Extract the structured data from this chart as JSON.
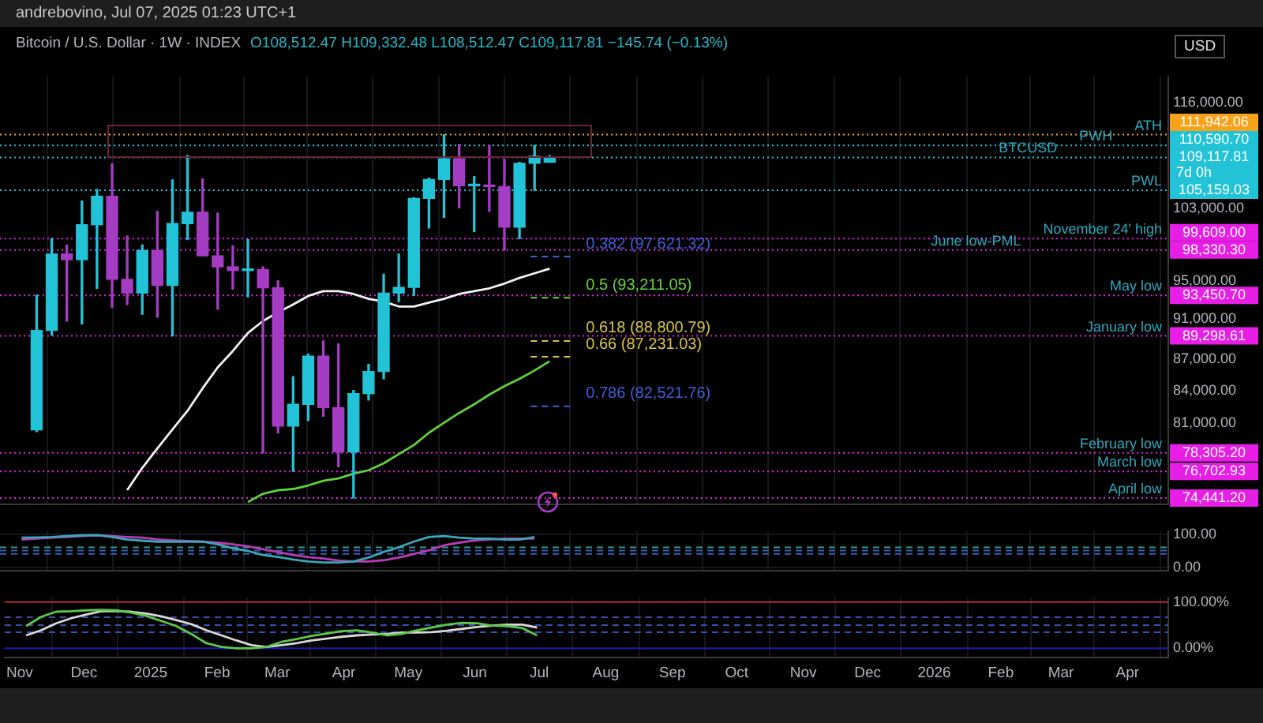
{
  "chart_data": [
    {
      "type": "candlestick",
      "title": "Bitcoin / U.S. Dollar · 1W · INDEX",
      "subtitle": "O108,512.47 H109,332.48 L108,512.47 C109,117.81 −145.74 (−0.13%)",
      "ylabel": "USD",
      "log": true,
      "grid": "x",
      "tick_labels": "y",
      "x": [
        "2024-11-11",
        "2024-11-18",
        "2024-11-25",
        "2024-12-02",
        "2024-12-09",
        "2024-12-16",
        "2024-12-23",
        "2024-12-30",
        "2025-01-06",
        "2025-01-13",
        "2025-01-20",
        "2025-01-27",
        "2025-02-03",
        "2025-02-10",
        "2025-02-17",
        "2025-02-24",
        "2025-03-03",
        "2025-03-10",
        "2025-03-17",
        "2025-03-24",
        "2025-03-31",
        "2025-04-07",
        "2025-04-14",
        "2025-04-21",
        "2025-04-28",
        "2025-05-05",
        "2025-05-12",
        "2025-05-19",
        "2025-05-26",
        "2025-06-02",
        "2025-06-09",
        "2025-06-16",
        "2025-06-23",
        "2025-06-30",
        "2025-07-07"
      ],
      "ohlc": [
        [
          80370,
          93480,
          80200,
          89850
        ],
        [
          89850,
          99609,
          89380,
          97900
        ],
        [
          97900,
          98870,
          90800,
          97280
        ],
        [
          97280,
          103900,
          90500,
          101170
        ],
        [
          101170,
          105250,
          94200,
          104460
        ],
        [
          104460,
          108350,
          92200,
          95150
        ],
        [
          95150,
          99900,
          92500,
          93700
        ],
        [
          93700,
          98900,
          91500,
          98300
        ],
        [
          98300,
          102700,
          91200,
          94500
        ],
        [
          94500,
          106400,
          89298.61,
          101300
        ],
        [
          101300,
          109350,
          99500,
          102600
        ],
        [
          102600,
          106500,
          97700,
          97700
        ],
        [
          97700,
          102500,
          92000,
          96500
        ],
        [
          96500,
          98800,
          94100,
          96100
        ],
        [
          96100,
          99500,
          93300,
          96200
        ],
        [
          96200,
          96500,
          78305.2,
          94250
        ],
        [
          94250,
          95000,
          80100,
          80700
        ],
        [
          80700,
          85300,
          76702.93,
          82700
        ],
        [
          82700,
          87500,
          81200,
          87300
        ],
        [
          87300,
          88800,
          81600,
          82400
        ],
        [
          82400,
          88500,
          77100,
          78400
        ],
        [
          78400,
          84000,
          74441.2,
          83700
        ],
        [
          83700,
          86500,
          83100,
          85800
        ],
        [
          85800,
          95700,
          85100,
          93700
        ],
        [
          93700,
          97900,
          92800,
          94300
        ],
        [
          94300,
          104300,
          93450.7,
          104200
        ],
        [
          104200,
          106600,
          100800,
          106450
        ],
        [
          106450,
          111942.06,
          102000,
          108950
        ],
        [
          108950,
          110700,
          103100,
          105700
        ],
        [
          105700,
          106800,
          100400,
          105750
        ],
        [
          105750,
          110600,
          102700,
          105600
        ],
        [
          105600,
          108900,
          98330.3,
          100900
        ],
        [
          100900,
          108500,
          99600,
          108400
        ],
        [
          108400,
          110590.7,
          105159.03,
          109263.55
        ],
        [
          108512.47,
          109332.48,
          108512.47,
          109117.81
        ]
      ],
      "colors": [
        "#22c3d6",
        "#22c3d6",
        "#a43cc4",
        "#22c3d6",
        "#22c3d6",
        "#a43cc4",
        "#a43cc4",
        "#22c3d6",
        "#a43cc4",
        "#22c3d6",
        "#22c3d6",
        "#a43cc4",
        "#a43cc4",
        "#a43cc4",
        "#22c3d6",
        "#a43cc4",
        "#a43cc4",
        "#22c3d6",
        "#22c3d6",
        "#a43cc4",
        "#a43cc4",
        "#22c3d6",
        "#22c3d6",
        "#22c3d6",
        "#22c3d6",
        "#22c3d6",
        "#22c3d6",
        "#22c3d6",
        "#a43cc4",
        "#22c3d6",
        "#a43cc4",
        "#a43cc4",
        "#22c3d6",
        "#22c3d6",
        "#22c3d6"
      ],
      "series": [
        {
          "type": "line",
          "color": "#f2f2f2",
          "values": [
            null,
            null,
            null,
            null,
            null,
            null,
            75100,
            77000,
            78700,
            80400,
            82100,
            84200,
            86200,
            87800,
            89600,
            90800,
            91700,
            92500,
            93400,
            93900,
            93900,
            93600,
            93100,
            92800,
            92300,
            92300,
            92700,
            93100,
            93600,
            93900,
            94200,
            94700,
            95300,
            95800,
            96300
          ]
        },
        {
          "type": "line",
          "color": "#5fd13a",
          "values": [
            null,
            null,
            null,
            null,
            null,
            null,
            null,
            null,
            null,
            null,
            null,
            null,
            null,
            null,
            74100,
            74800,
            75100,
            75200,
            75500,
            75900,
            76100,
            76500,
            76800,
            77400,
            78200,
            79000,
            80100,
            81000,
            81900,
            82700,
            83600,
            84400,
            85100,
            85900,
            86800
          ]
        }
      ],
      "xlim": [
        "2024-10-25",
        "2026-04-20"
      ],
      "xticks": [
        {
          "value": "2024-11-01",
          "label": null
        },
        {
          "value": "2024-12-01",
          "label": null
        },
        {
          "value": "2025-01-01",
          "label": null
        },
        {
          "value": "2025-02-01",
          "label": null
        },
        {
          "value": "2025-03-01",
          "label": null
        },
        {
          "value": "2025-04-01",
          "label": null
        },
        {
          "value": "2025-05-01",
          "label": null
        },
        {
          "value": "2025-06-01",
          "label": null
        },
        {
          "value": "2025-07-01",
          "label": null
        },
        {
          "value": "2025-08-01",
          "label": null
        },
        {
          "value": "2025-09-01",
          "label": null
        },
        {
          "value": "2025-10-01",
          "label": null
        },
        {
          "value": "2025-11-01",
          "label": null
        },
        {
          "value": "2025-12-01",
          "label": null
        },
        {
          "value": "2026-01-01",
          "label": null
        },
        {
          "value": "2026-02-01",
          "label": null
        },
        {
          "value": "2026-03-01",
          "label": null
        },
        {
          "value": "2026-04-01",
          "label": null
        }
      ],
      "ylim": [
        73900,
        119500
      ],
      "yticks": [
        {
          "value": 81000,
          "label": "81,000.00"
        },
        {
          "value": 84000,
          "label": "84,000.00"
        },
        {
          "value": 87000,
          "label": "87,000.00"
        },
        {
          "value": 91000,
          "label": "91,000.00"
        },
        {
          "value": 95000,
          "label": "95,000.00"
        },
        {
          "value": 103000,
          "label": "103,000.00"
        },
        {
          "value": 116000,
          "label": "116,000.00"
        }
      ],
      "ref_lines": [
        {
          "axis": "y",
          "value": 111942.06,
          "label": "111,942.06",
          "color": "#f7a21b",
          "line_style": "dotted"
        },
        {
          "axis": "y",
          "value": 110590.7,
          "label": "110,590.70",
          "color": "#22c3d6",
          "line_style": "dotted"
        },
        {
          "axis": "y",
          "value": 109117.81,
          "label": "109,117.81",
          "color": "#22c3d6",
          "line_style": "dotted"
        },
        {
          "axis": "y",
          "value": 105159.03,
          "label": "105,159.03",
          "color": "#22c3d6",
          "line_style": "dotted"
        },
        {
          "axis": "y",
          "value": 99609.0,
          "label": "99,609.00",
          "color": "#e61ee6",
          "line_style": "dotted"
        },
        {
          "axis": "y",
          "value": 98330.3,
          "label": "98,330.30",
          "color": "#e61ee6",
          "line_style": "dotted"
        },
        {
          "axis": "y",
          "value": 93450.7,
          "label": "93,450.70",
          "color": "#e61ee6",
          "line_style": "dotted"
        },
        {
          "axis": "y",
          "value": 89298.61,
          "label": "89,298.61",
          "color": "#e61ee6",
          "line_style": "dotted"
        },
        {
          "axis": "y",
          "value": 78305.2,
          "label": "78,305.20",
          "color": "#e61ee6",
          "line_style": "dotted"
        },
        {
          "axis": "y",
          "value": 76702.93,
          "label": "76,702.93",
          "color": "#e61ee6",
          "line_style": "dotted"
        },
        {
          "axis": "y",
          "value": 74441.2,
          "label": "74,441.20",
          "color": "#e61ee6",
          "line_style": "dotted"
        },
        {
          "axis": "y",
          "value": 97621.32,
          "label": "0.382 (97,621.32)",
          "color": "#3f5fd8",
          "line_style": "dashed"
        },
        {
          "axis": "y",
          "value": 93211.05,
          "label": "0.5 (93,211.05)",
          "color": "#66d33a",
          "line_style": "dashed"
        },
        {
          "axis": "y",
          "value": 88800.79,
          "label": "0.618 (88,800.79)",
          "color": "#d8c24a",
          "line_style": "dashed"
        },
        {
          "axis": "y",
          "value": 87231.03,
          "label": "0.66 (87,231.03)",
          "color": "#d8c24a",
          "line_style": "dashed"
        },
        {
          "axis": "y",
          "value": 82521.76,
          "label": "0.786 (82,521.76)",
          "color": "#3f5fd8",
          "line_style": "dashed"
        }
      ],
      "annotations": [
        "andrebovino, Jul 07, 2025 01:23 UTC+1",
        "ATH",
        "PWH",
        "BTCUSD",
        "PWL",
        "November 24' high",
        "June low-PML",
        "May low",
        "January low",
        "February low",
        "March low",
        "April low",
        "7d 0h"
      ]
    },
    {
      "type": "line",
      "grid": true,
      "tick_labels": "y",
      "x": [
        "2024-11-04",
        "2024-11-11",
        "2024-11-18",
        "2024-11-25",
        "2024-12-02",
        "2024-12-09",
        "2024-12-16",
        "2024-12-23",
        "2024-12-30",
        "2025-01-06",
        "2025-01-13",
        "2025-01-20",
        "2025-01-27",
        "2025-02-03",
        "2025-02-10",
        "2025-02-17",
        "2025-02-24",
        "2025-03-03",
        "2025-03-10",
        "2025-03-17",
        "2025-03-24",
        "2025-03-31",
        "2025-04-07",
        "2025-04-14",
        "2025-04-21",
        "2025-04-28",
        "2025-05-05",
        "2025-05-12",
        "2025-05-19",
        "2025-05-26",
        "2025-06-02",
        "2025-06-09",
        "2025-06-16",
        "2025-06-23",
        "2025-06-30"
      ],
      "series": [
        {
          "color": "#3aa6b9",
          "values": [
            89,
            90,
            91,
            94,
            96,
            97,
            91,
            83,
            80,
            77,
            77,
            77,
            77,
            69,
            57,
            49,
            37,
            31,
            23,
            17,
            14,
            14,
            17,
            29,
            46,
            60,
            77,
            91,
            94,
            89,
            86,
            86,
            83,
            83,
            91
          ]
        },
        {
          "color": "#b93ab5",
          "values": [
            83,
            86,
            89,
            91,
            94,
            96,
            94,
            91,
            89,
            84,
            81,
            79,
            77,
            74,
            69,
            63,
            54,
            46,
            37,
            30,
            26,
            20,
            17,
            17,
            21,
            29,
            40,
            51,
            66,
            74,
            80,
            84,
            86,
            86,
            86
          ]
        }
      ],
      "xlim": [
        "2024-10-25",
        "2026-04-20"
      ],
      "xticks": [
        {
          "value": "2024-11-01",
          "label": null
        },
        {
          "value": "2024-12-01",
          "label": null
        },
        {
          "value": "2025-01-01",
          "label": null
        },
        {
          "value": "2025-02-01",
          "label": null
        },
        {
          "value": "2025-03-01",
          "label": null
        },
        {
          "value": "2025-04-01",
          "label": null
        },
        {
          "value": "2025-05-01",
          "label": null
        },
        {
          "value": "2025-06-01",
          "label": null
        },
        {
          "value": "2025-07-01",
          "label": null
        },
        {
          "value": "2025-08-01",
          "label": null
        },
        {
          "value": "2025-09-01",
          "label": null
        },
        {
          "value": "2025-10-01",
          "label": null
        },
        {
          "value": "2025-11-01",
          "label": null
        },
        {
          "value": "2025-12-01",
          "label": null
        },
        {
          "value": "2026-01-01",
          "label": null
        },
        {
          "value": "2026-02-01",
          "label": null
        },
        {
          "value": "2026-03-01",
          "label": null
        },
        {
          "value": "2026-04-01",
          "label": null
        }
      ],
      "ylim": [
        -11,
        109
      ],
      "yticks": [
        {
          "value": 0,
          "label": "0.00"
        },
        {
          "value": 100,
          "label": "100.00"
        }
      ],
      "ref_lines": [
        {
          "axis": "y",
          "value": 60,
          "color": "#2e9c8c",
          "line_style": "dashed"
        },
        {
          "axis": "y",
          "value": 50,
          "color": "#3a5fb0",
          "line_style": "dashed"
        },
        {
          "axis": "y",
          "value": 40,
          "color": "#3a5fb0",
          "line_style": "dashed"
        }
      ]
    },
    {
      "type": "line",
      "grid": true,
      "x": [
        "2024-11-04",
        "2024-11-11",
        "2024-11-18",
        "2024-11-25",
        "2024-12-02",
        "2024-12-09",
        "2024-12-16",
        "2024-12-23",
        "2024-12-30",
        "2025-01-06",
        "2025-01-13",
        "2025-01-20",
        "2025-01-27",
        "2025-02-03",
        "2025-02-10",
        "2025-02-17",
        "2025-02-24",
        "2025-03-03",
        "2025-03-10",
        "2025-03-17",
        "2025-03-24",
        "2025-03-31",
        "2025-04-07",
        "2025-04-14",
        "2025-04-21",
        "2025-04-28",
        "2025-05-05",
        "2025-05-12",
        "2025-05-19",
        "2025-05-26",
        "2025-06-02",
        "2025-06-09",
        "2025-06-16",
        "2025-06-23",
        "2025-06-30"
      ],
      "series": [
        {
          "color": "#5cc84a",
          "values": [
            48,
            68,
            79,
            80,
            82,
            83,
            82,
            77,
            70,
            59,
            48,
            31,
            11,
            3,
            0,
            0,
            3,
            14,
            20,
            27,
            32,
            37,
            39,
            34,
            28,
            31,
            39,
            45,
            51,
            55,
            54,
            49,
            48,
            44,
            28
          ]
        },
        {
          "color": "#d8d8d8",
          "values": [
            28,
            39,
            54,
            65,
            73,
            80,
            80,
            79,
            75,
            69,
            61,
            52,
            39,
            28,
            17,
            7,
            3,
            7,
            11,
            17,
            21,
            25,
            28,
            30,
            31,
            34,
            34,
            35,
            38,
            42,
            46,
            49,
            51,
            51,
            45
          ]
        }
      ],
      "xlim": [
        "2024-10-25",
        "2026-04-20"
      ],
      "xticks": [
        {
          "value": "2024-11-01",
          "label": "Nov"
        },
        {
          "value": "2024-12-01",
          "label": "Dec"
        },
        {
          "value": "2025-01-01",
          "label": "2025"
        },
        {
          "value": "2025-02-01",
          "label": "Feb"
        },
        {
          "value": "2025-03-01",
          "label": "Mar"
        },
        {
          "value": "2025-04-01",
          "label": "Apr"
        },
        {
          "value": "2025-05-01",
          "label": "May"
        },
        {
          "value": "2025-06-01",
          "label": "Jun"
        },
        {
          "value": "2025-07-01",
          "label": "Jul"
        },
        {
          "value": "2025-08-01",
          "label": "Aug"
        },
        {
          "value": "2025-09-01",
          "label": "Sep"
        },
        {
          "value": "2025-10-01",
          "label": "Oct"
        },
        {
          "value": "2025-11-01",
          "label": "Nov"
        },
        {
          "value": "2025-12-01",
          "label": "Dec"
        },
        {
          "value": "2026-01-01",
          "label": "2026"
        },
        {
          "value": "2026-02-01",
          "label": "Feb"
        },
        {
          "value": "2026-03-01",
          "label": "Mar"
        },
        {
          "value": "2026-04-01",
          "label": "Apr"
        }
      ],
      "ylim": [
        -20,
        110
      ],
      "yticks": [
        {
          "value": 0,
          "label": "0.00%"
        },
        {
          "value": 100,
          "label": "100.00%"
        }
      ],
      "ref_lines": [
        {
          "axis": "y",
          "value": 100,
          "color": "#b02a2a",
          "line_style": "solid"
        },
        {
          "axis": "y",
          "value": 67,
          "color": "#3a4fb0",
          "line_style": "dashed"
        },
        {
          "axis": "y",
          "value": 50,
          "color": "#3a4fb0",
          "line_style": "dashed"
        },
        {
          "axis": "y",
          "value": 35,
          "color": "#3a4fb0",
          "line_style": "dashed"
        },
        {
          "axis": "y",
          "value": 0,
          "color": "#1a1ab0",
          "line_style": "solid"
        }
      ]
    }
  ]
}
